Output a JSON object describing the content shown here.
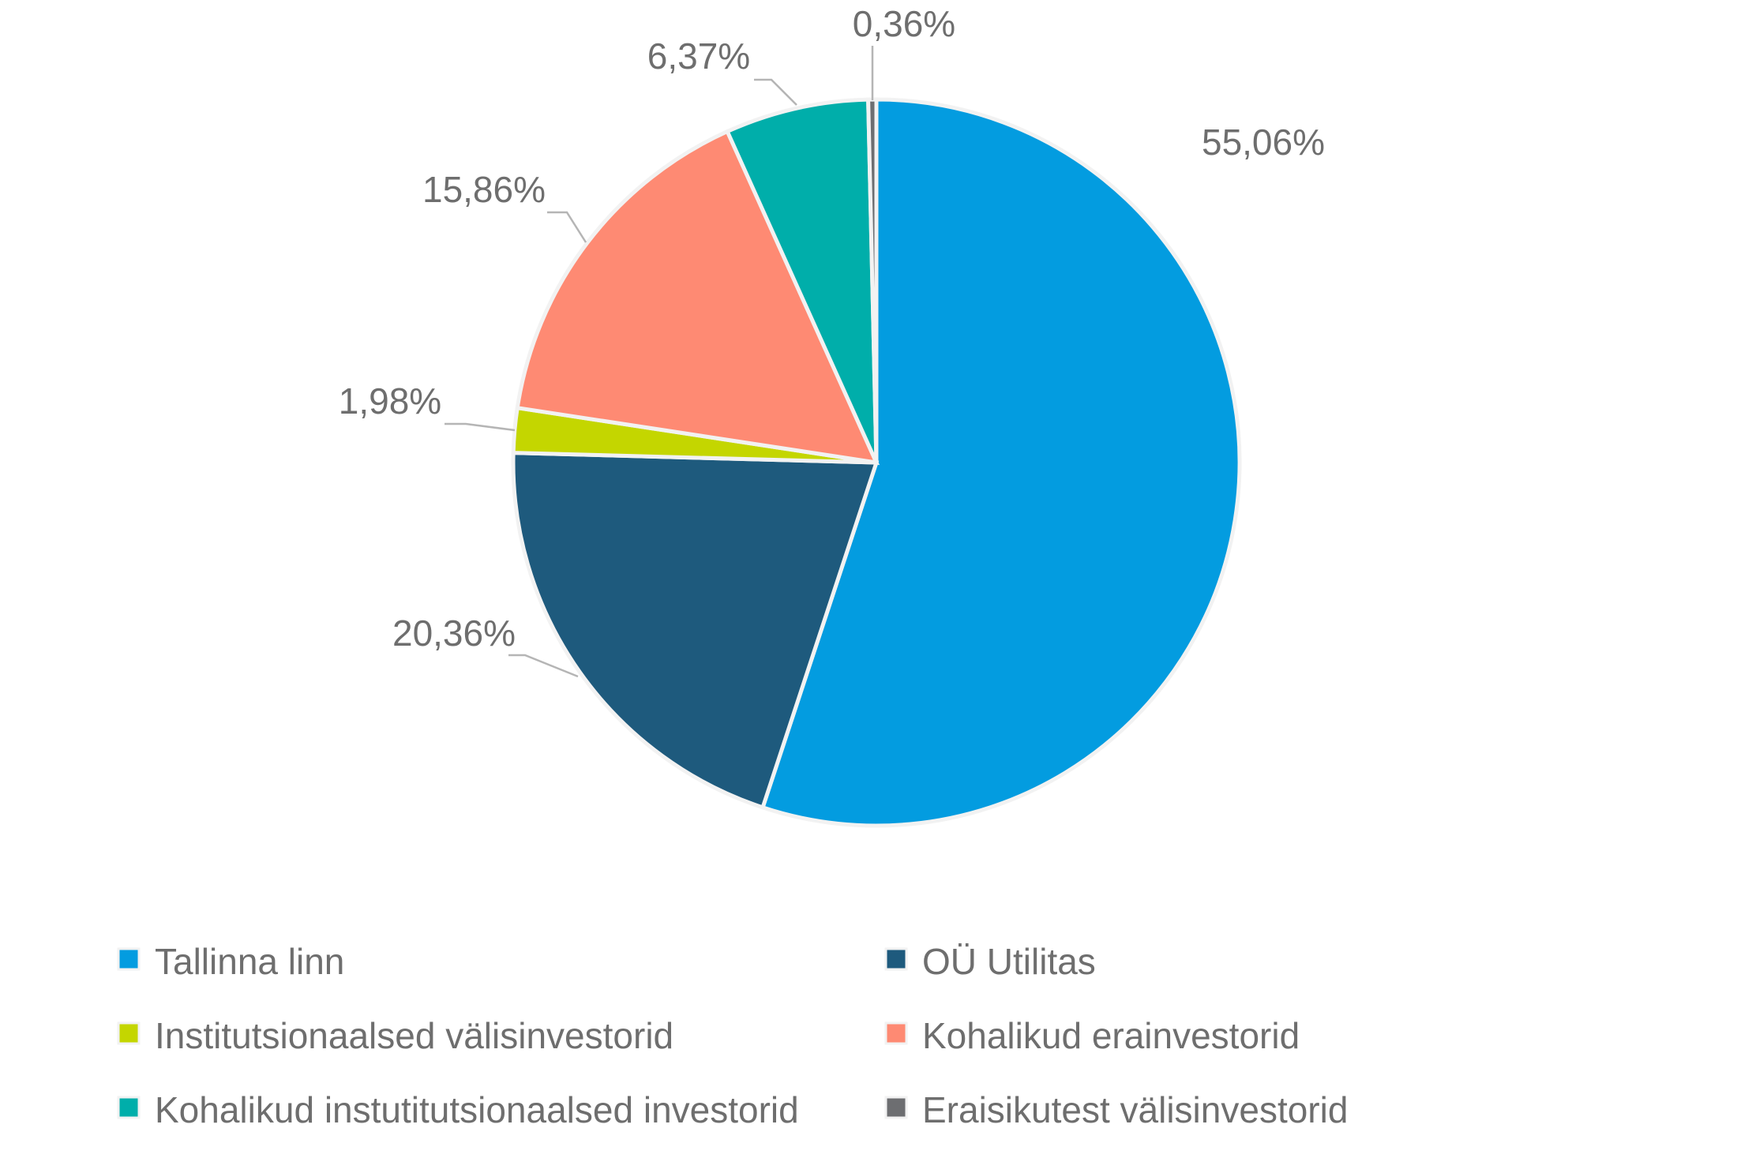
{
  "chart_data": {
    "type": "pie",
    "title": "",
    "slices": [
      {
        "label": "Tallinna linn",
        "value": 55.06,
        "value_label": "55,06%",
        "color": "#039ce0"
      },
      {
        "label": "OÜ Utilitas",
        "value": 20.36,
        "value_label": "20,36%",
        "color": "#1e5a7d"
      },
      {
        "label": "Institutsionaalsed välisinvestorid",
        "value": 1.98,
        "value_label": "1,98%",
        "color": "#c4d600"
      },
      {
        "label": "Kohalikud erainvestorid",
        "value": 15.86,
        "value_label": "15,86%",
        "color": "#fe8a73"
      },
      {
        "label": "Kohalikud instutitutsionaalsed investorid",
        "value": 6.37,
        "value_label": "6,37%",
        "color": "#00aeaa"
      },
      {
        "label": "Eraisikutest välisinvestorid",
        "value": 0.36,
        "value_label": "0,36%",
        "color": "#6d6e71"
      }
    ],
    "start_angle": "12 o'clock",
    "direction": "clockwise",
    "legend_position": "bottom",
    "legend_columns": 2
  },
  "colors": {
    "label_text": "#6e6e6e",
    "leader_line": "#b5b5b5",
    "slice_border": "#f2f2f2",
    "background": "#ffffff"
  }
}
